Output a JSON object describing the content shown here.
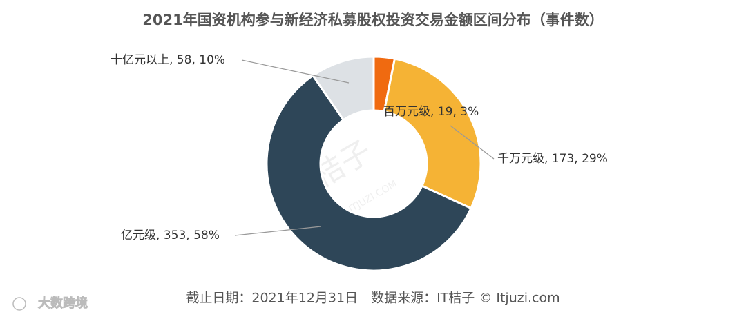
{
  "chart_data": {
    "type": "donut",
    "title": "2021年国资机构参与新经济私募股权投资交易金额区间分布（事件数）",
    "values": [
      19,
      173,
      353,
      58
    ],
    "value_labels": [
      "百万元级, 19, 3%",
      "千万元级, 173, 29%",
      "亿元级, 353, 58%",
      "十亿元以上, 58, 10%"
    ],
    "colors": [
      "#f06a10",
      "#f5b335",
      "#2e4658",
      "#dde1e5"
    ],
    "footer": "截止日期：2021年12月31日　数据来源：IT桔子 © Itjuzi.com",
    "watermark": "IT桔子",
    "watermark_sub": "ITJUZI.COM",
    "corner_mark": "大数跨境"
  }
}
